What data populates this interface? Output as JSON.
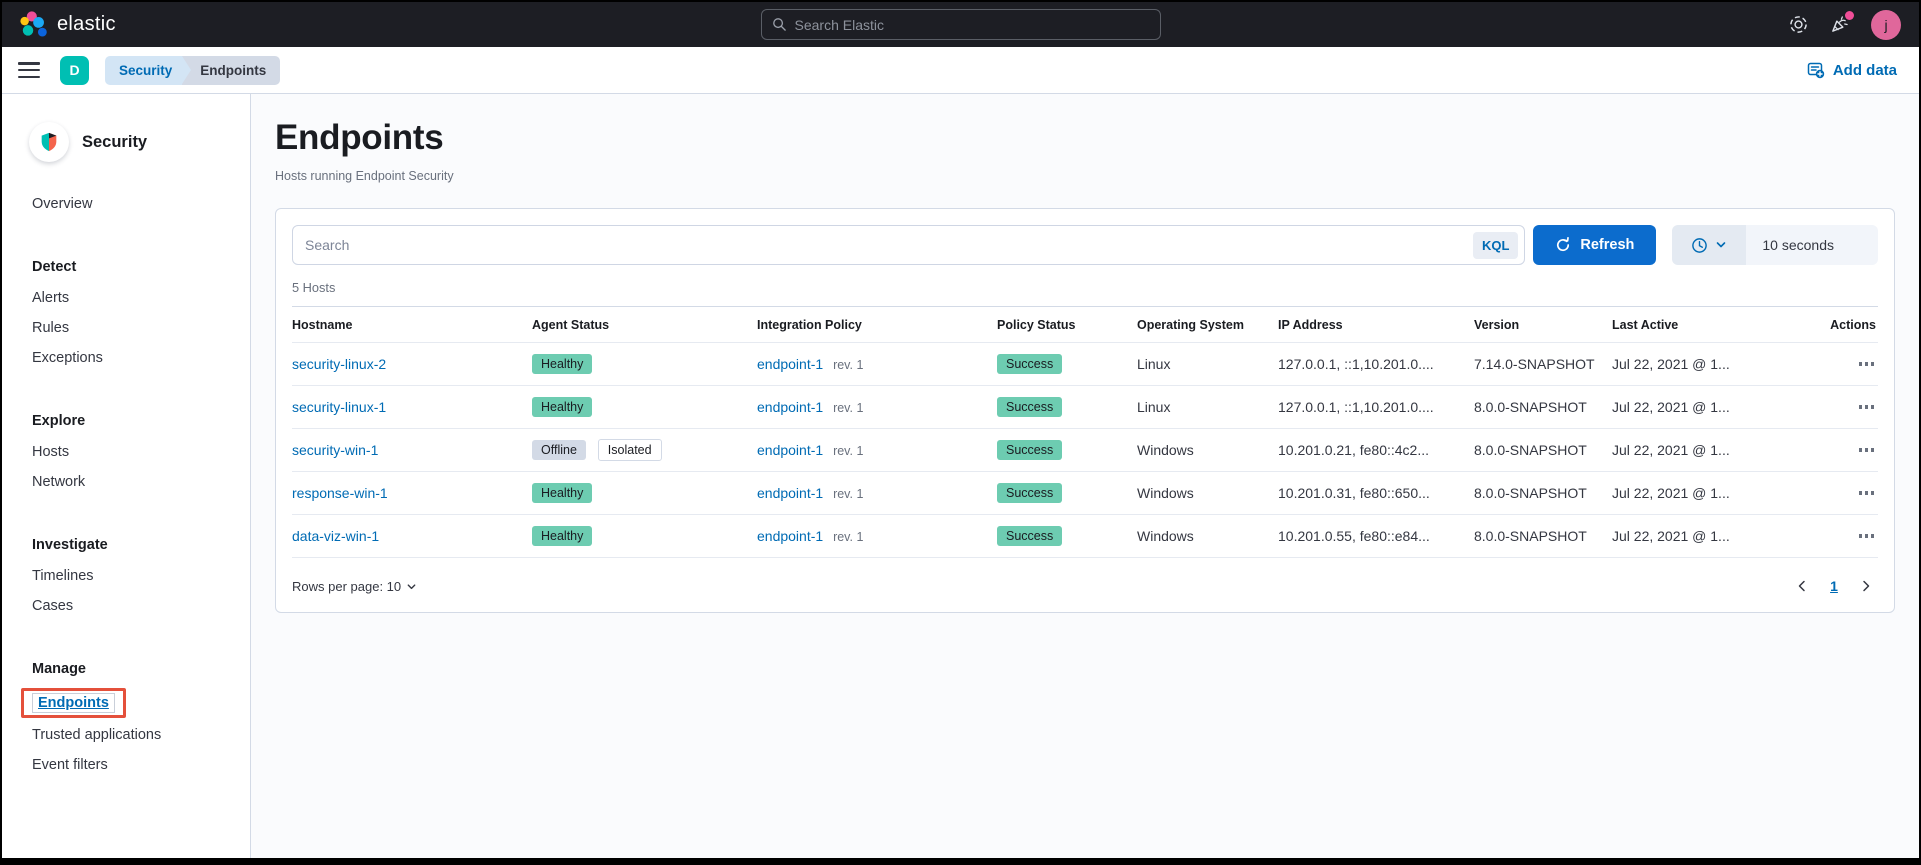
{
  "header": {
    "logo_text": "elastic",
    "search_placeholder": "Search Elastic",
    "avatar_initial": "j"
  },
  "breadcrumb_bar": {
    "space_initial": "D",
    "breadcrumbs": [
      {
        "label": "Security"
      },
      {
        "label": "Endpoints"
      }
    ],
    "add_data_label": "Add data"
  },
  "sidebar": {
    "app_title": "Security",
    "sections": [
      {
        "heading": "",
        "items": [
          {
            "label": "Overview"
          }
        ]
      },
      {
        "heading": "Detect",
        "items": [
          {
            "label": "Alerts"
          },
          {
            "label": "Rules"
          },
          {
            "label": "Exceptions"
          }
        ]
      },
      {
        "heading": "Explore",
        "items": [
          {
            "label": "Hosts"
          },
          {
            "label": "Network"
          }
        ]
      },
      {
        "heading": "Investigate",
        "items": [
          {
            "label": "Timelines"
          },
          {
            "label": "Cases"
          }
        ]
      },
      {
        "heading": "Manage",
        "items": [
          {
            "label": "Endpoints",
            "selected": true,
            "annotated": true
          },
          {
            "label": "Trusted applications"
          },
          {
            "label": "Event filters"
          }
        ]
      }
    ]
  },
  "page": {
    "title": "Endpoints",
    "subtitle": "Hosts running Endpoint Security"
  },
  "toolbar": {
    "search_placeholder": "Search",
    "kql_label": "KQL",
    "refresh_label": "Refresh",
    "interval_value": "10 seconds"
  },
  "table": {
    "count_label": "5 Hosts",
    "columns": [
      "Hostname",
      "Agent Status",
      "Integration Policy",
      "Policy Status",
      "Operating System",
      "IP Address",
      "Version",
      "Last Active",
      "Actions"
    ],
    "rows": [
      {
        "hostname": "security-linux-2",
        "agent_status": "Healthy",
        "agent_status_kind": "success",
        "isolated": false,
        "isolated_label": "",
        "policy": "endpoint-1",
        "rev": "rev. 1",
        "policy_status": "Success",
        "os": "Linux",
        "ip": "127.0.0.1, ::1,10.201.0....",
        "version": "7.14.0-SNAPSHOT",
        "last_active": "Jul 22, 2021 @ 1..."
      },
      {
        "hostname": "security-linux-1",
        "agent_status": "Healthy",
        "agent_status_kind": "success",
        "isolated": false,
        "isolated_label": "",
        "policy": "endpoint-1",
        "rev": "rev. 1",
        "policy_status": "Success",
        "os": "Linux",
        "ip": "127.0.0.1, ::1,10.201.0....",
        "version": "8.0.0-SNAPSHOT",
        "last_active": "Jul 22, 2021 @ 1..."
      },
      {
        "hostname": "security-win-1",
        "agent_status": "Offline",
        "agent_status_kind": "offline",
        "isolated": true,
        "isolated_label": "Isolated",
        "policy": "endpoint-1",
        "rev": "rev. 1",
        "policy_status": "Success",
        "os": "Windows",
        "ip": "10.201.0.21, fe80::4c2...",
        "version": "8.0.0-SNAPSHOT",
        "last_active": "Jul 22, 2021 @ 1..."
      },
      {
        "hostname": "response-win-1",
        "agent_status": "Healthy",
        "agent_status_kind": "success",
        "isolated": false,
        "isolated_label": "",
        "policy": "endpoint-1",
        "rev": "rev. 1",
        "policy_status": "Success",
        "os": "Windows",
        "ip": "10.201.0.31, fe80::650...",
        "version": "8.0.0-SNAPSHOT",
        "last_active": "Jul 22, 2021 @ 1..."
      },
      {
        "hostname": "data-viz-win-1",
        "agent_status": "Healthy",
        "agent_status_kind": "success",
        "isolated": false,
        "isolated_label": "",
        "policy": "endpoint-1",
        "rev": "rev. 1",
        "policy_status": "Success",
        "os": "Windows",
        "ip": "10.201.0.55, fe80::e84...",
        "version": "8.0.0-SNAPSHOT",
        "last_active": "Jul 22, 2021 @ 1..."
      }
    ]
  },
  "footer": {
    "rows_per_page_label": "Rows per page: 10"
  },
  "pagination": {
    "page_number": "1"
  },
  "colors": {
    "header_bg": "#1d1e24",
    "link": "#006bb4",
    "accent": "#0c6ccd",
    "success_badge": "#6dccb1",
    "offline_badge": "#d3dae6",
    "annotation": "#e4503b",
    "space_badge": "#00bfb3",
    "avatar": "#e0679b",
    "crumb_active_bg": "#d3e5f5",
    "crumb_bg": "#d3dae6"
  }
}
